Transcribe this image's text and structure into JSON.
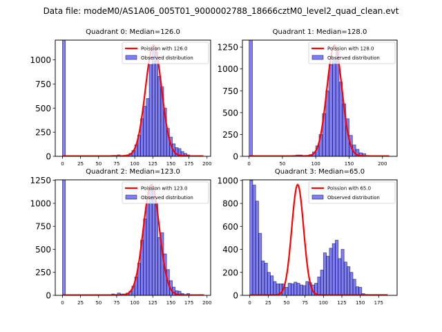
{
  "suptitle": "Data file: modeM0/AS1A06_005T01_9000002788_18666cztM0_level2_quad_clean.evt",
  "chart_data": [
    {
      "type": "bar",
      "title": "Quadrant 0: Median=126.0",
      "xlabel": "",
      "ylabel": "",
      "xlim": [
        -10,
        205
      ],
      "ylim": [
        0,
        1205
      ],
      "xticks": [
        0,
        25,
        50,
        75,
        100,
        125,
        150,
        175,
        200
      ],
      "yticks": [
        0,
        250,
        500,
        750,
        1000
      ],
      "legend": {
        "placement": "top-right",
        "entries": [
          "Poission with 126.0",
          "Observed distribution"
        ]
      },
      "bin_width": 4,
      "histogram": {
        "name": "Observed distribution",
        "bins_start": [
          0,
          64,
          68,
          72,
          76,
          80,
          84,
          88,
          92,
          96,
          100,
          104,
          108,
          112,
          116,
          120,
          124,
          128,
          132,
          136,
          140,
          144,
          148,
          152,
          156,
          160,
          164,
          168,
          172,
          176,
          180
        ],
        "values": [
          1300,
          5,
          10,
          10,
          15,
          5,
          10,
          15,
          30,
          60,
          120,
          220,
          390,
          520,
          600,
          950,
          1100,
          1080,
          830,
          720,
          500,
          290,
          200,
          130,
          90,
          80,
          50,
          30,
          15,
          8,
          4
        ]
      },
      "poisson": {
        "name": "Poission with 126.0",
        "mean": 126.0,
        "peak": 1150,
        "x_range": [
          0,
          195
        ]
      }
    },
    {
      "type": "bar",
      "title": "Quadrant 1: Median=128.0",
      "xlabel": "",
      "ylabel": "",
      "xlim": [
        -10,
        222
      ],
      "ylim": [
        0,
        1330
      ],
      "xticks": [
        0,
        50,
        100,
        150,
        200
      ],
      "yticks": [
        0,
        250,
        500,
        750,
        1000,
        1250
      ],
      "legend": {
        "placement": "top-right",
        "entries": [
          "Poission with 128.0",
          "Observed distribution"
        ]
      },
      "bin_width": 5,
      "histogram": {
        "name": "Observed distribution",
        "bins_start": [
          0,
          65,
          70,
          75,
          80,
          85,
          90,
          95,
          100,
          105,
          110,
          115,
          120,
          125,
          130,
          135,
          140,
          145,
          150,
          155,
          160,
          165,
          170,
          175
        ],
        "values": [
          1400,
          10,
          15,
          15,
          10,
          10,
          20,
          50,
          120,
          250,
          490,
          750,
          1050,
          1100,
          1200,
          850,
          600,
          430,
          240,
          130,
          80,
          40,
          30,
          10
        ]
      },
      "poisson": {
        "name": "Poission with 128.0",
        "mean": 128.0,
        "peak": 1270,
        "x_range": [
          0,
          210
        ]
      }
    },
    {
      "type": "bar",
      "title": "Quadrant 2: Median=123.0",
      "xlabel": "",
      "ylabel": "",
      "xlim": [
        -10,
        205
      ],
      "ylim": [
        0,
        1255
      ],
      "xticks": [
        0,
        25,
        50,
        75,
        100,
        125,
        150,
        175,
        200
      ],
      "yticks": [
        0,
        250,
        500,
        750,
        1000,
        1250
      ],
      "legend": {
        "placement": "top-right",
        "entries": [
          "Poission with 123.0",
          "Observed distribution"
        ]
      },
      "bin_width": 4,
      "histogram": {
        "name": "Observed distribution",
        "bins_start": [
          0,
          64,
          68,
          72,
          76,
          80,
          84,
          88,
          92,
          96,
          100,
          104,
          108,
          112,
          116,
          120,
          124,
          128,
          132,
          136,
          140,
          144,
          148,
          152,
          156,
          160,
          164,
          168,
          172,
          176
        ],
        "values": [
          1300,
          5,
          15,
          10,
          25,
          15,
          15,
          25,
          45,
          100,
          200,
          350,
          600,
          830,
          1000,
          1180,
          1150,
          1000,
          630,
          680,
          450,
          280,
          160,
          90,
          50,
          45,
          20,
          10,
          20,
          5
        ]
      },
      "poisson": {
        "name": "Poission with 123.0",
        "mean": 123.0,
        "peak": 1200,
        "x_range": [
          0,
          196
        ]
      }
    },
    {
      "type": "bar",
      "title": "Quadrant 3: Median=65.0",
      "xlabel": "",
      "ylabel": "",
      "xlim": [
        -10,
        200
      ],
      "ylim": [
        0,
        1005
      ],
      "xticks": [
        0,
        25,
        50,
        75,
        100,
        125,
        150,
        175
      ],
      "yticks": [
        0,
        200,
        400,
        600,
        800,
        1000
      ],
      "legend": {
        "placement": "top-right",
        "entries": [
          "Poission with 65.0",
          "Observed distribution"
        ]
      },
      "bin_width": 4,
      "histogram": {
        "name": "Observed distribution",
        "bins_start": [
          0,
          4,
          8,
          12,
          16,
          20,
          24,
          28,
          32,
          36,
          40,
          44,
          48,
          52,
          56,
          60,
          64,
          68,
          72,
          76,
          80,
          84,
          88,
          92,
          96,
          100,
          104,
          108,
          112,
          116,
          120,
          124,
          128,
          132,
          136,
          140,
          144,
          148,
          152,
          156,
          160
        ],
        "values": [
          1000,
          960,
          820,
          540,
          300,
          280,
          200,
          170,
          120,
          100,
          100,
          100,
          70,
          105,
          100,
          115,
          105,
          90,
          85,
          120,
          110,
          90,
          105,
          160,
          220,
          370,
          340,
          410,
          450,
          480,
          320,
          400,
          290,
          250,
          200,
          140,
          75,
          70,
          15,
          8,
          4
        ]
      },
      "poisson": {
        "name": "Poission with 65.0",
        "mean": 65.0,
        "peak": 960,
        "x_range": [
          0,
          187
        ]
      }
    }
  ]
}
